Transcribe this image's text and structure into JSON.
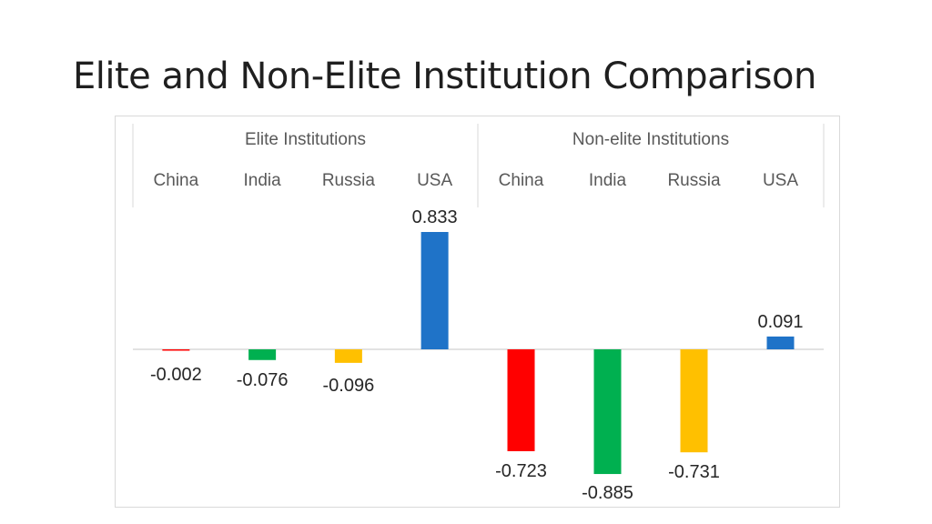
{
  "slide": {
    "title": "Elite and Non-Elite Institution Comparison"
  },
  "chart_data": {
    "type": "bar",
    "title": "Elite and Non-Elite Institution Comparison",
    "groups": [
      {
        "name": "Elite Institutions",
        "categories": [
          "China",
          "India",
          "Russia",
          "USA"
        ],
        "values": [
          -0.002,
          -0.076,
          -0.096,
          0.833
        ],
        "labels": [
          "-0.002",
          "-0.076",
          "-0.096",
          "0.833"
        ]
      },
      {
        "name": "Non-elite Institutions",
        "categories": [
          "China",
          "India",
          "Russia",
          "USA"
        ],
        "values": [
          -0.723,
          -0.885,
          -0.731,
          0.091
        ],
        "labels": [
          "-0.723",
          "-0.885",
          "-0.731",
          "0.091"
        ]
      }
    ],
    "colors": {
      "China": "#ff0000",
      "India": "#00b050",
      "Russia": "#ffc000",
      "USA": "#1f73c8"
    },
    "ylim": [
      -0.885,
      0.833
    ],
    "grid": false,
    "xlabel": "",
    "ylabel": ""
  }
}
